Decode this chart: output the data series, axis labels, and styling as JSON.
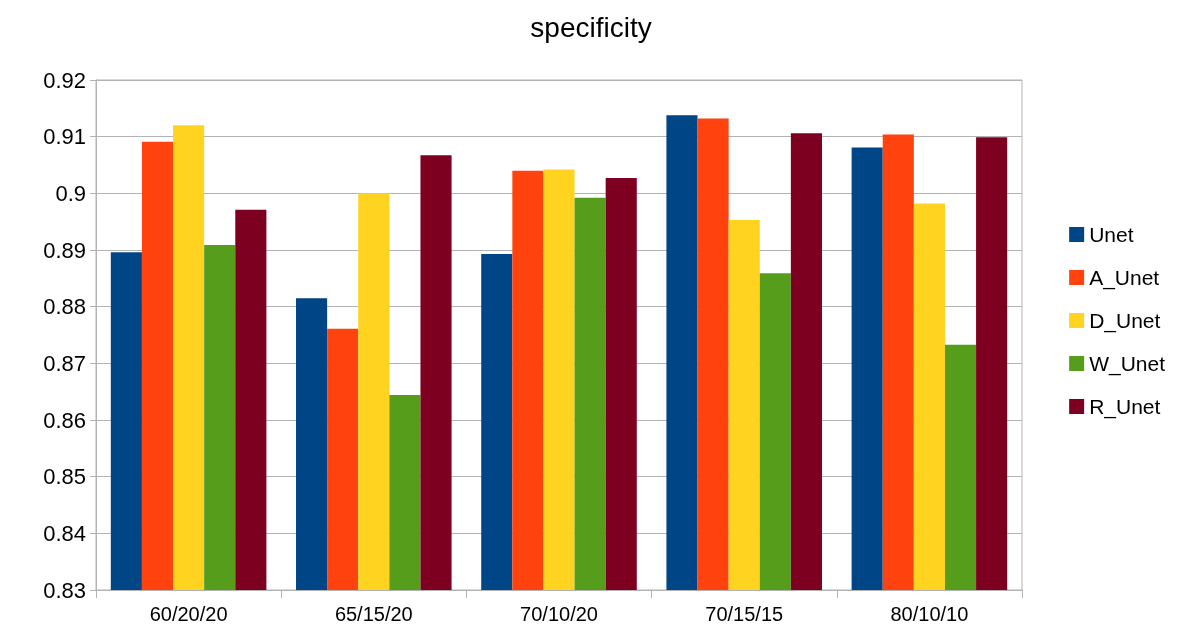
{
  "chart_data": {
    "type": "bar",
    "title": "specificity",
    "categories": [
      "60/20/20",
      "65/15/20",
      "70/10/20",
      "70/15/15",
      "80/10/10"
    ],
    "series": [
      {
        "name": "Unet",
        "color": "#004586",
        "values": [
          0.8896,
          0.8815,
          0.8893,
          0.9138,
          0.9081
        ]
      },
      {
        "name": "A_Unet",
        "color": "#ff420e",
        "values": [
          0.9091,
          0.8761,
          0.904,
          0.9132,
          0.9104
        ]
      },
      {
        "name": "D_Unet",
        "color": "#ffd320",
        "values": [
          0.912,
          0.9,
          0.9042,
          0.8953,
          0.8982
        ]
      },
      {
        "name": "W_Unet",
        "color": "#579d1c",
        "values": [
          0.8909,
          0.8644,
          0.8992,
          0.8859,
          0.8733
        ]
      },
      {
        "name": "R_Unet",
        "color": "#7e0021",
        "values": [
          0.8971,
          0.9067,
          0.9027,
          0.9106,
          0.9099
        ]
      }
    ],
    "ylim": [
      0.83,
      0.92
    ],
    "yticks": [
      0.83,
      0.84,
      0.85,
      0.86,
      0.87,
      0.88,
      0.89,
      0.9,
      0.91,
      0.92
    ],
    "grid": "y",
    "legend": "right"
  }
}
